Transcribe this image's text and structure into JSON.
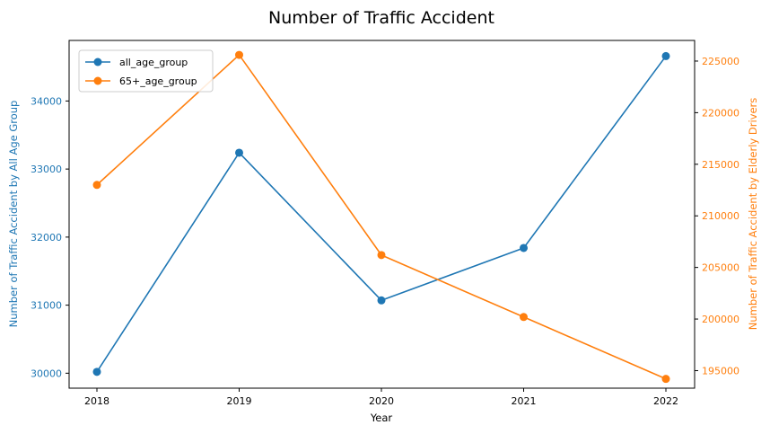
{
  "chart_data": {
    "type": "line",
    "title": "Number of Traffic Accident",
    "xlabel": "Year",
    "ylabel_left": "Number of Traffic Accident by All Age Group",
    "ylabel_right": "Number of Traffic Accident by Elderly Drivers",
    "x": [
      "2018",
      "2019",
      "2020",
      "2021",
      "2022"
    ],
    "ylim_left": [
      29780,
      34890
    ],
    "ylim_right": [
      193300,
      227000
    ],
    "yticks_left": [
      30000,
      31000,
      32000,
      33000,
      34000
    ],
    "yticks_right": [
      195000,
      200000,
      205000,
      210000,
      215000,
      220000,
      225000
    ],
    "grid": false,
    "legend_position": "top-left",
    "series": [
      {
        "name": "all_age_group",
        "axis": "left",
        "color": "#1f77b4",
        "values": [
          30020,
          33240,
          31070,
          31840,
          34660
        ]
      },
      {
        "name": "65+_age_group",
        "axis": "right",
        "color": "#ff7f0e",
        "values": [
          213000,
          225600,
          206200,
          200200,
          194200
        ]
      }
    ]
  }
}
